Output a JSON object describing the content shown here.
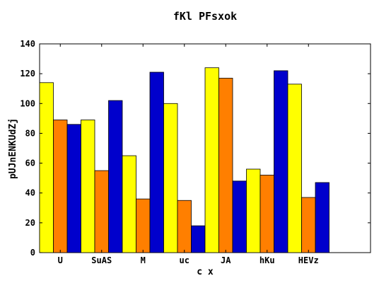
{
  "chart_data": {
    "type": "bar",
    "title": "fKl PFsxok",
    "xlabel": "c x",
    "ylabel": "pUJnENKUdZj",
    "categories": [
      "U",
      "SuAS",
      "M",
      "uc",
      "JA",
      "hKu",
      "HEVz"
    ],
    "series": [
      {
        "color": "#ffff00",
        "values": [
          114,
          89,
          65,
          100,
          124,
          56,
          113
        ]
      },
      {
        "color": "#ff7f00",
        "values": [
          89,
          55,
          36,
          35,
          117,
          52,
          37
        ]
      },
      {
        "color": "#0000cc",
        "values": [
          86,
          102,
          121,
          18,
          48,
          122,
          47
        ]
      }
    ],
    "ylim": [
      0,
      140
    ],
    "yticks": [
      0,
      20,
      40,
      60,
      80,
      100,
      120,
      140
    ],
    "xlim": [
      0,
      8
    ],
    "grid": false,
    "legend": "none"
  }
}
